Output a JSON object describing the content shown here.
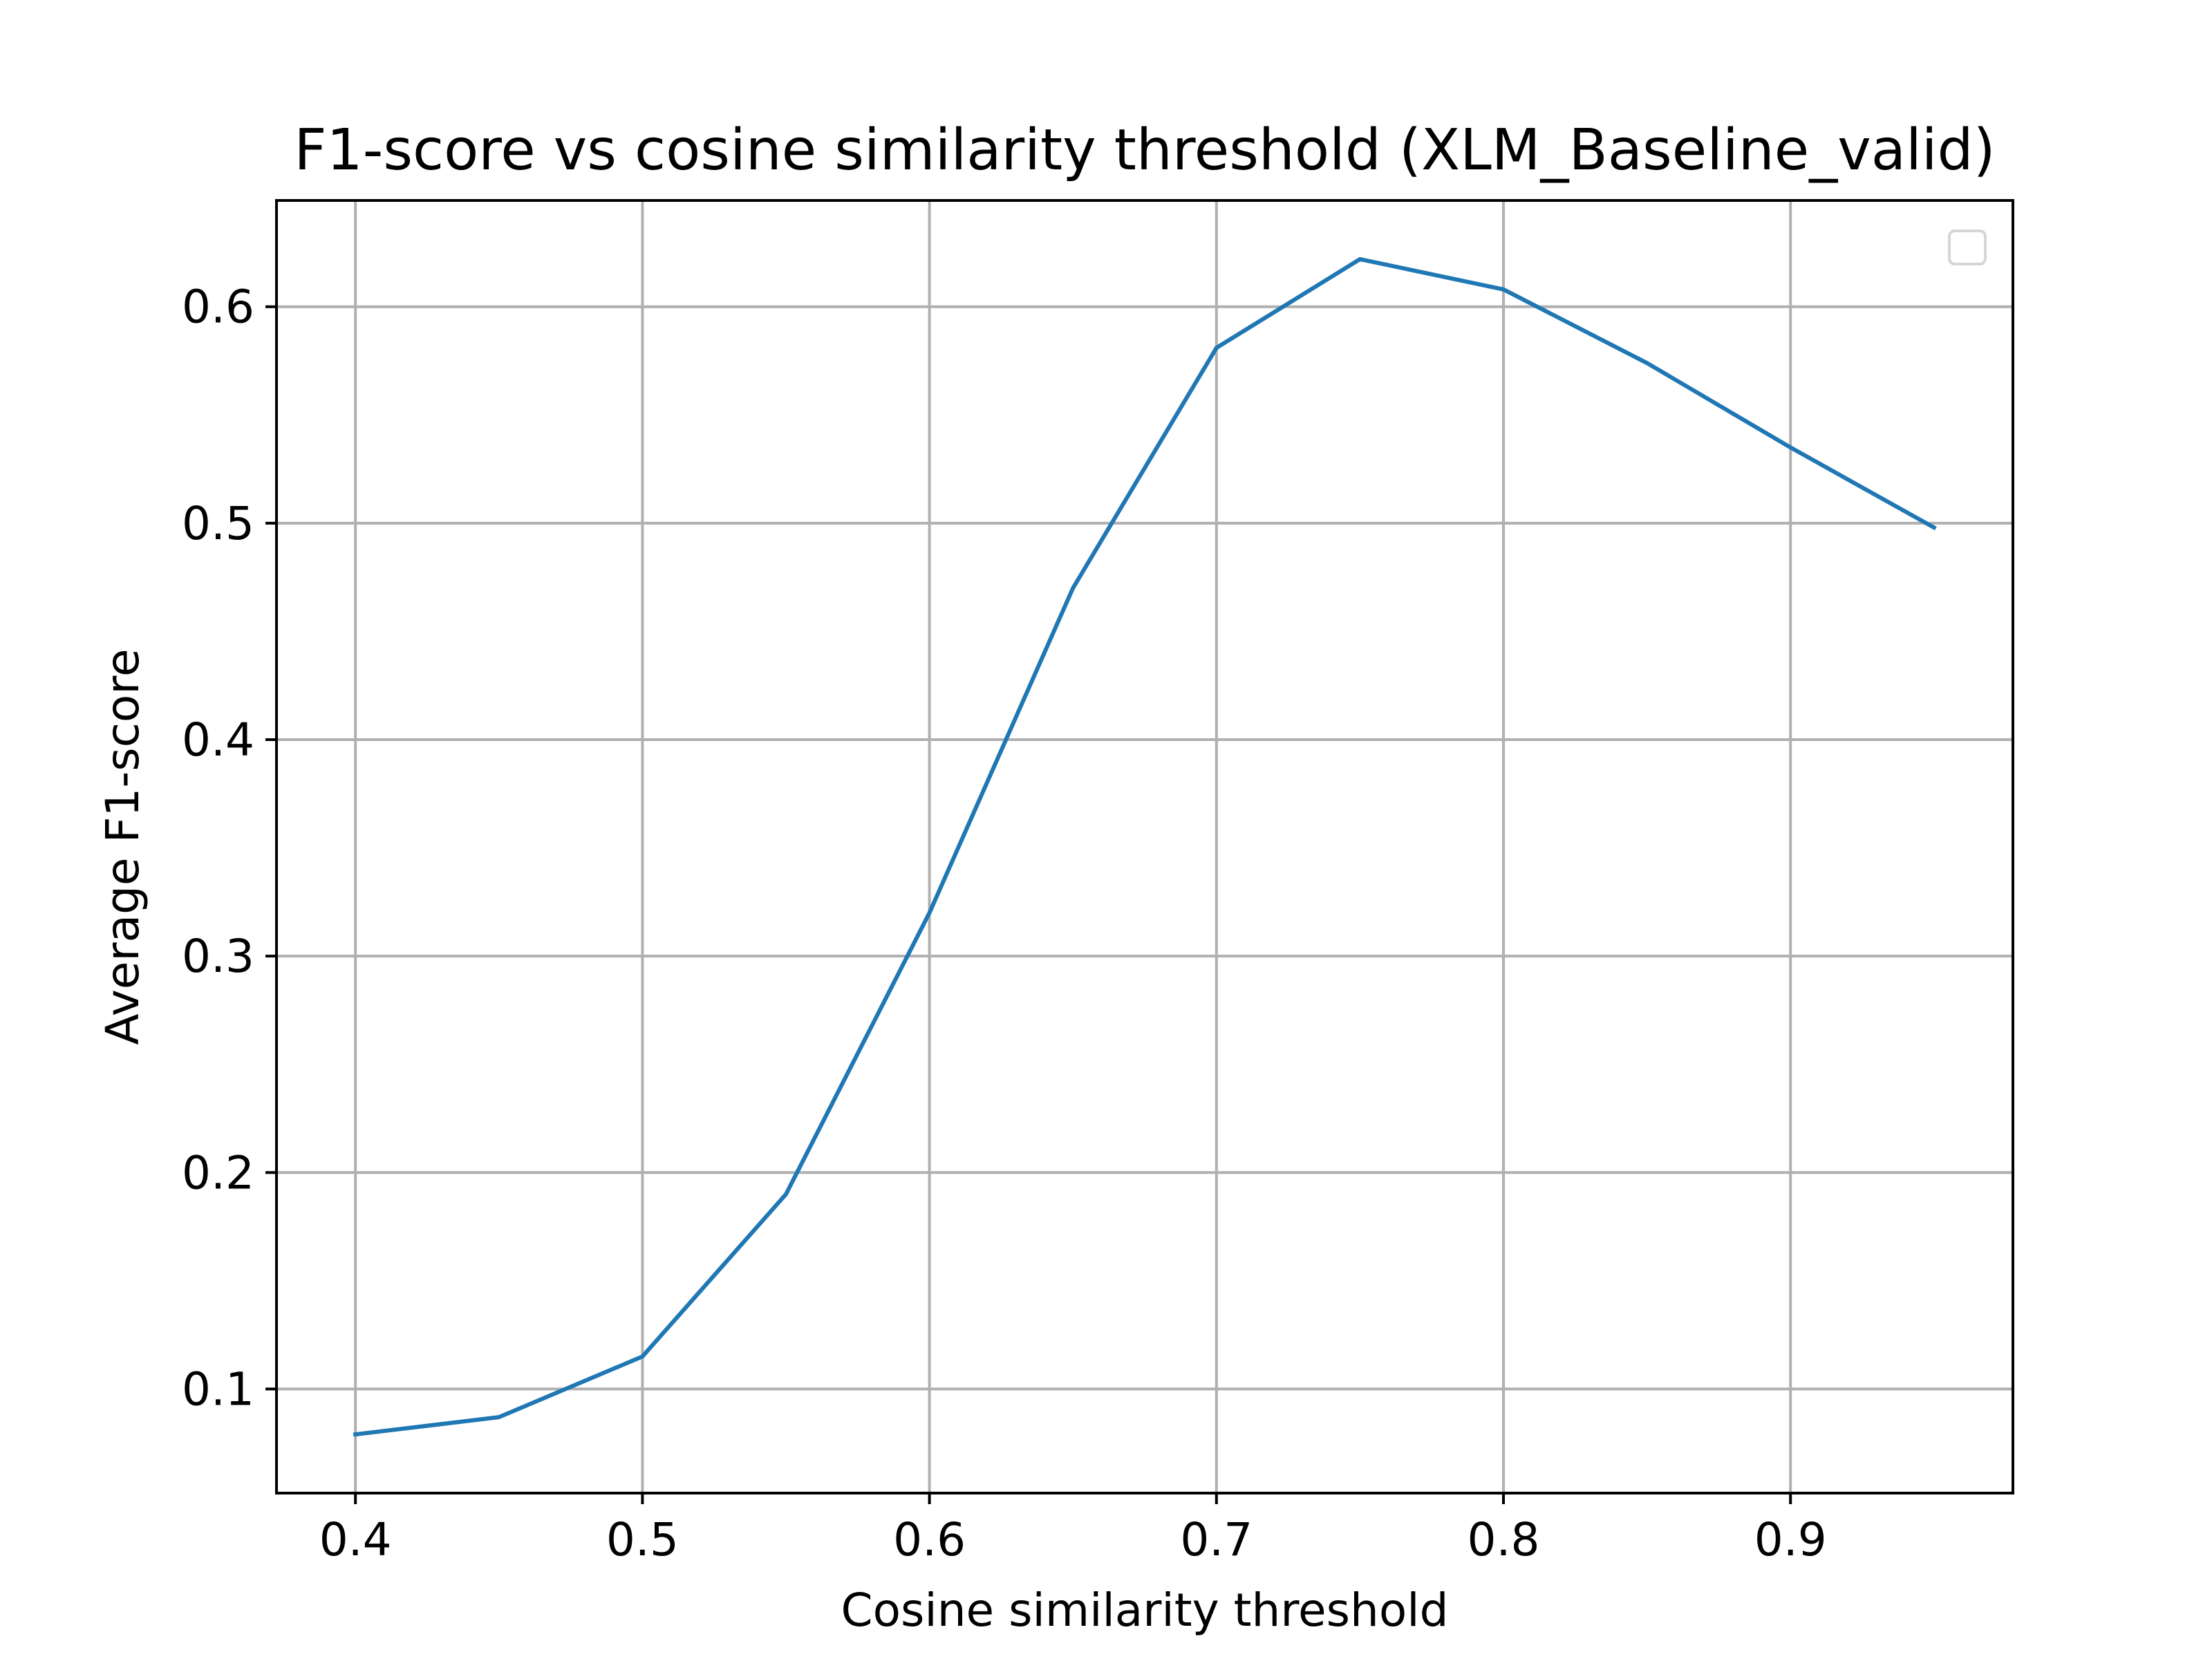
{
  "chart_data": {
    "type": "line",
    "title": "F1-score vs cosine similarity threshold (XLM_Baseline_valid)",
    "xlabel": "Cosine similarity threshold",
    "ylabel": "Average F1-score",
    "x": [
      0.4,
      0.45,
      0.5,
      0.55,
      0.6,
      0.65,
      0.7,
      0.75,
      0.8,
      0.85,
      0.9,
      0.95
    ],
    "series": [
      {
        "values": [
          0.079,
          0.087,
          0.115,
          0.19,
          0.32,
          0.47,
          0.581,
          0.622,
          0.608,
          0.574,
          0.535,
          0.498
        ],
        "color": "#1f77b4"
      }
    ],
    "xticks": [
      "0.4",
      "0.5",
      "0.6",
      "0.7",
      "0.8",
      "0.9"
    ],
    "yticks": [
      "0.1",
      "0.2",
      "0.3",
      "0.4",
      "0.5",
      "0.6"
    ],
    "xlim": [
      0.3725,
      0.9775
    ],
    "ylim": [
      0.0519,
      0.6491
    ],
    "grid": true,
    "legend": "top-right, empty"
  }
}
